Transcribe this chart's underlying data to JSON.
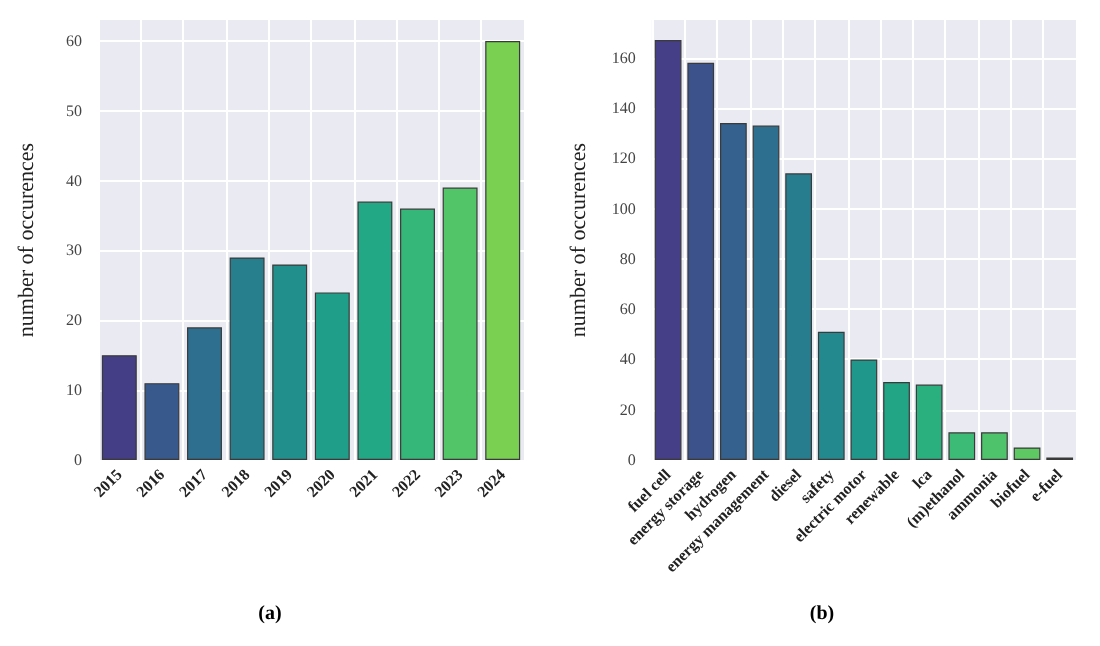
{
  "chart_data": [
    {
      "type": "bar",
      "ylabel": "number of occurences",
      "annotations": [
        "(a)"
      ],
      "grid": true,
      "categories": [
        "2015",
        "2016",
        "2017",
        "2018",
        "2019",
        "2020",
        "2021",
        "2022",
        "2023",
        "2024"
      ],
      "values": [
        15,
        11,
        19,
        29,
        28,
        24,
        37,
        36,
        39,
        60
      ],
      "colors": [
        "#433e85",
        "#38598c",
        "#2e6e8e",
        "#277f8e",
        "#21908d",
        "#1f9e89",
        "#22a884",
        "#35b779",
        "#52c569",
        "#7ad151"
      ],
      "ylim": [
        0,
        63
      ],
      "yticks": [
        0,
        10,
        20,
        30,
        40,
        50,
        60
      ]
    },
    {
      "type": "bar",
      "ylabel": "number of occurences",
      "annotations": [
        "(b)"
      ],
      "grid": true,
      "categories": [
        "fuel cell",
        "energy storage",
        "hydrogen",
        "energy management",
        "diesel",
        "safety",
        "electric motor",
        "renewable",
        "lca",
        "(m)ethanol",
        "ammonia",
        "biofuel",
        "e-fuel"
      ],
      "values": [
        167,
        158,
        134,
        133,
        114,
        51,
        40,
        31,
        30,
        11,
        11,
        5,
        1
      ],
      "colors": [
        "#443f86",
        "#3b528b",
        "#34618d",
        "#2d6f8e",
        "#277d8e",
        "#23898e",
        "#1f978b",
        "#21a585",
        "#2ab07f",
        "#3bbb75",
        "#4ec36b",
        "#5ec962",
        "#75d054"
      ],
      "ylim": [
        0,
        175
      ],
      "yticks": [
        0,
        20,
        40,
        60,
        80,
        100,
        120,
        140,
        160
      ]
    }
  ]
}
